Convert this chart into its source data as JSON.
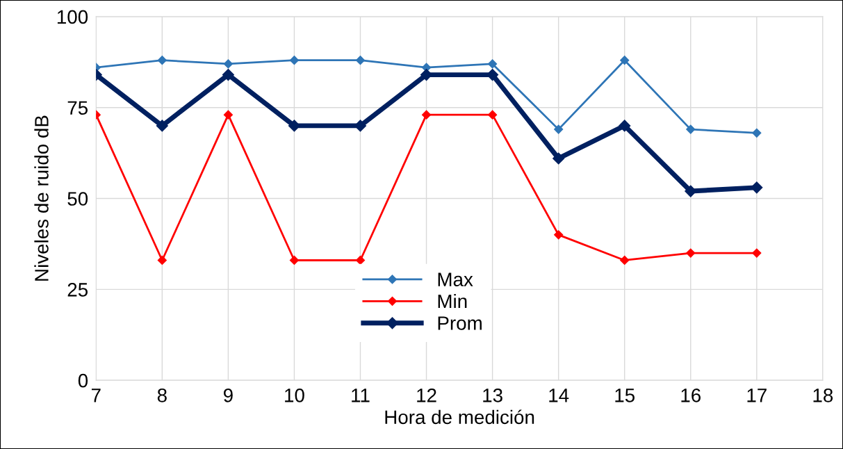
{
  "chart_data": {
    "type": "line",
    "xlabel": "Hora de medición",
    "ylabel": "Niveles de ruido dB",
    "x": [
      7,
      8,
      9,
      10,
      11,
      12,
      13,
      14,
      15,
      16,
      17
    ],
    "series": [
      {
        "name": "Max",
        "color": "#2e75b6",
        "values": [
          86,
          88,
          87,
          88,
          88,
          86,
          87,
          69,
          88,
          69,
          68
        ]
      },
      {
        "name": "Min",
        "color": "#ff0000",
        "values": [
          73,
          33,
          73,
          33,
          33,
          73,
          73,
          40,
          33,
          35,
          35
        ]
      },
      {
        "name": "Prom",
        "color": "#002060",
        "values": [
          84,
          70,
          84,
          70,
          70,
          84,
          84,
          61,
          70,
          52,
          53
        ]
      }
    ],
    "xlim": [
      7,
      18
    ],
    "xticks": [
      7,
      8,
      9,
      10,
      11,
      12,
      13,
      14,
      15,
      16,
      17,
      18
    ],
    "ylim": [
      0,
      100
    ],
    "yticks": [
      0,
      25,
      50,
      75,
      100
    ],
    "grid": true,
    "legend": "bottom",
    "marker": "diamond",
    "line_style": "solid"
  }
}
